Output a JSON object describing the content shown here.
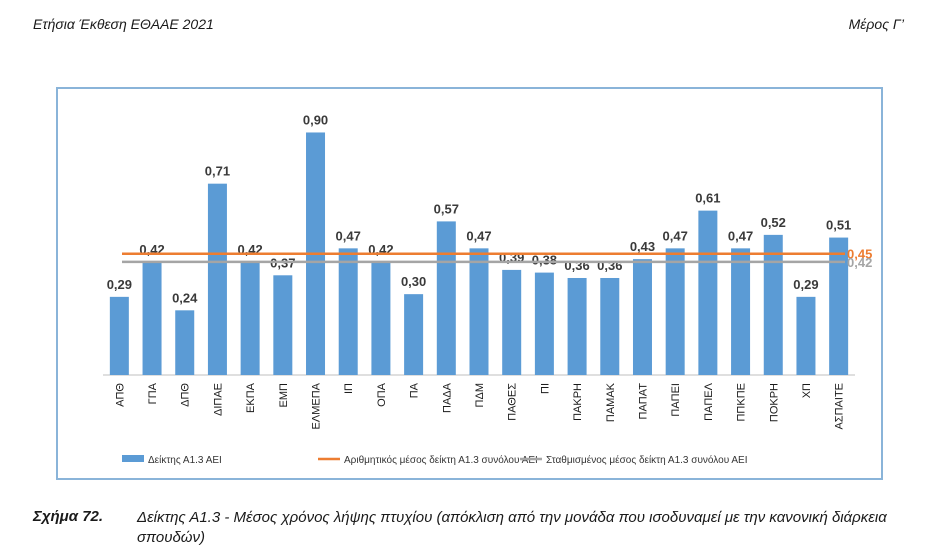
{
  "header": {
    "left": "Ετήσια Έκθεση ΕΘΑΑΕ 2021",
    "right": "Μέρος Γ’"
  },
  "caption": {
    "number": "Σχήμα 72.",
    "text": "Δείκτης Α1.3 - Μέσος χρόνος λήψης πτυχίου (απόκλιση από την μονάδα που ισοδυναμεί με την κανονική διάρκεια σπουδών)"
  },
  "colors": {
    "bar": "#5b9bd5",
    "arithmetic_mean": "#ed7d31",
    "weighted_mean": "#a5a5a5",
    "frame": "#8ab4d9"
  },
  "chart_data": {
    "type": "bar",
    "title": "",
    "xlabel": "",
    "ylabel": "",
    "ylim": [
      0,
      0.95
    ],
    "grid": false,
    "legend_position": "bottom",
    "categories": [
      "ΑΠΘ",
      "ΓΠΑ",
      "ΔΠΘ",
      "ΔΙΠΑΕ",
      "ΕΚΠΑ",
      "ΕΜΠ",
      "ΕΛΜΕΠΑ",
      "ΙΠ",
      "ΟΠΑ",
      "ΠΑ",
      "ΠΑΔΑ",
      "ΠΔΜ",
      "ΠΑΘΕΣ",
      "ΠΙ",
      "ΠΑΚΡΗ",
      "ΠΑΜΑΚ",
      "ΠΑΠΑΤ",
      "ΠΑΠΕΙ",
      "ΠΑΠΕΛ",
      "ΠΠΚΠΕ",
      "ΠΟΚΡΗ",
      "ΧΠ",
      "ΑΣΠΑΙΤΕ"
    ],
    "series": [
      {
        "name": "Δείκτης Α1.3 ΑΕΙ",
        "values": [
          0.29,
          0.42,
          0.24,
          0.71,
          0.42,
          0.37,
          0.9,
          0.47,
          0.42,
          0.3,
          0.57,
          0.47,
          0.39,
          0.38,
          0.36,
          0.36,
          0.43,
          0.47,
          0.61,
          0.47,
          0.52,
          0.29,
          0.51
        ],
        "labels": [
          "0,29",
          "0,42",
          "0,24",
          "0,71",
          "0,42",
          "0,37",
          "0,90",
          "0,47",
          "0,42",
          "0,30",
          "0,57",
          "0,47",
          "0,39",
          "0,38",
          "0,36",
          "0,36",
          "0,43",
          "0,47",
          "0,61",
          "0,47",
          "0,52",
          "0,29",
          "0,51"
        ]
      }
    ],
    "reference_lines": [
      {
        "name": "Αριθμητικός μέσος δείκτη Α1.3 συνόλου ΑΕΙ",
        "value": 0.45,
        "label": "0,45"
      },
      {
        "name": "Σταθμισμένος μέσος δείκτη Α1.3 συνόλου ΑΕΙ",
        "value": 0.42,
        "label": "0,42"
      }
    ]
  }
}
